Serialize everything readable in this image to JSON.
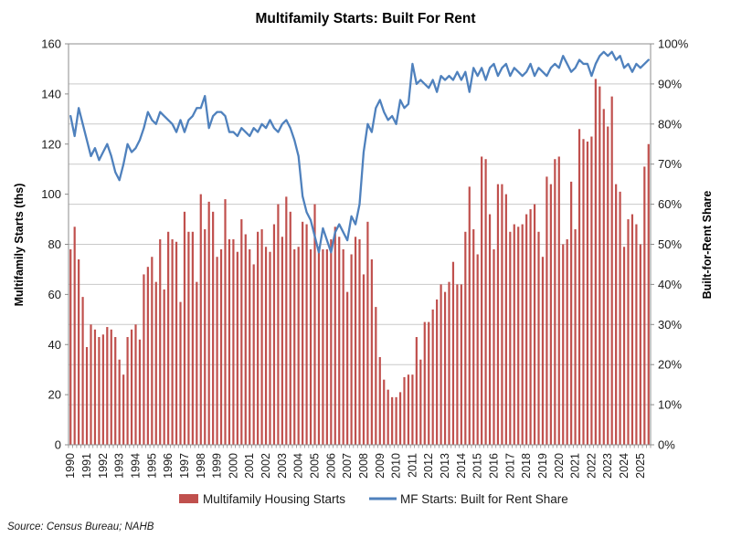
{
  "title": "Multifamily Starts: Built For Rent",
  "source": "Source: Census Bureau; NAHB",
  "legend": {
    "bars": "Multifamily Housing Starts",
    "line": "MF Starts: Built for Rent Share"
  },
  "colors": {
    "bar": "#C0504D",
    "line": "#4F81BD",
    "grid": "#C9C9C9",
    "frame": "#8C8C8C",
    "text": "#1A1A1A"
  },
  "chart_data": {
    "type": "combo",
    "frequency": "quarterly",
    "start_year": 1990,
    "categories": [
      "1990",
      "1991",
      "1992",
      "1993",
      "1994",
      "1995",
      "1996",
      "1997",
      "1998",
      "1999",
      "2000",
      "2001",
      "2002",
      "2003",
      "2004",
      "2005",
      "2006",
      "2007",
      "2008",
      "2009",
      "2010",
      "2011",
      "2012",
      "2013",
      "2014",
      "2015",
      "2016",
      "2017",
      "2018",
      "2019",
      "2020",
      "2021",
      "2022",
      "2023",
      "2024",
      "2025"
    ],
    "series": [
      {
        "name": "Multifamily Housing Starts",
        "type": "bar",
        "axis": "left",
        "values": [
          78,
          87,
          74,
          59,
          39,
          48,
          46,
          43,
          44,
          47,
          46,
          43,
          34,
          28,
          43,
          46,
          48,
          42,
          68,
          71,
          75,
          65,
          82,
          62,
          85,
          82,
          81,
          57,
          93,
          85,
          85,
          65,
          100,
          86,
          97,
          93,
          75,
          78,
          98,
          82,
          82,
          77,
          90,
          84,
          78,
          72,
          85,
          86,
          79,
          77,
          88,
          96,
          83,
          99,
          93,
          78,
          79,
          89,
          88,
          78,
          96,
          79,
          78,
          78,
          82,
          87,
          83,
          78,
          61,
          76,
          83,
          82,
          68,
          89,
          74,
          55,
          35,
          26,
          22,
          19,
          19,
          21,
          27,
          28,
          28,
          43,
          34,
          49,
          49,
          54,
          58,
          64,
          61,
          65,
          73,
          64,
          64,
          85,
          103,
          86,
          76,
          115,
          114,
          92,
          78,
          104,
          104,
          100,
          85,
          88,
          87,
          88,
          92,
          94,
          96,
          85,
          75,
          107,
          104,
          114,
          115,
          80,
          82,
          105,
          86,
          126,
          122,
          121,
          123,
          146,
          143,
          134,
          127,
          139,
          104,
          101,
          79,
          90,
          92,
          88,
          80,
          111,
          120
        ]
      },
      {
        "name": "MF Starts: Built for Rent Share",
        "type": "line",
        "axis": "right",
        "values": [
          82,
          77,
          84,
          80,
          76,
          72,
          74,
          71,
          73,
          75,
          72,
          68,
          66,
          70,
          75,
          73,
          74,
          76,
          79,
          83,
          81,
          80,
          83,
          82,
          81,
          80,
          78,
          81,
          78,
          81,
          82,
          84,
          84,
          87,
          79,
          82,
          83,
          83,
          82,
          78,
          78,
          77,
          79,
          78,
          77,
          79,
          78,
          80,
          79,
          81,
          79,
          78,
          80,
          81,
          79,
          76,
          72,
          62,
          58,
          56,
          52,
          48,
          54,
          51,
          48,
          53,
          55,
          53,
          51,
          57,
          55,
          60,
          73,
          80,
          78,
          84,
          86,
          83,
          81,
          82,
          80,
          86,
          84,
          85,
          95,
          90,
          91,
          90,
          89,
          91,
          88,
          92,
          91,
          92,
          91,
          93,
          91,
          93,
          88,
          94,
          92,
          94,
          91,
          94,
          95,
          92,
          94,
          95,
          92,
          94,
          93,
          92,
          93,
          95,
          92,
          94,
          93,
          92,
          94,
          95,
          94,
          97,
          95,
          93,
          94,
          96,
          95,
          95,
          92,
          95,
          97,
          98,
          97,
          98,
          96,
          97,
          94,
          95,
          93,
          95,
          94,
          95,
          96
        ]
      }
    ],
    "y_left": {
      "title": "Multifamily Starts (ths)",
      "min": 0,
      "max": 160,
      "step": 20
    },
    "y_right": {
      "title": "Built-for-Rent Share",
      "min": 0,
      "max": 100,
      "step": 10,
      "format": "percent"
    },
    "grid": "horizontal, every 10% of right axis",
    "legend_position": "bottom"
  }
}
